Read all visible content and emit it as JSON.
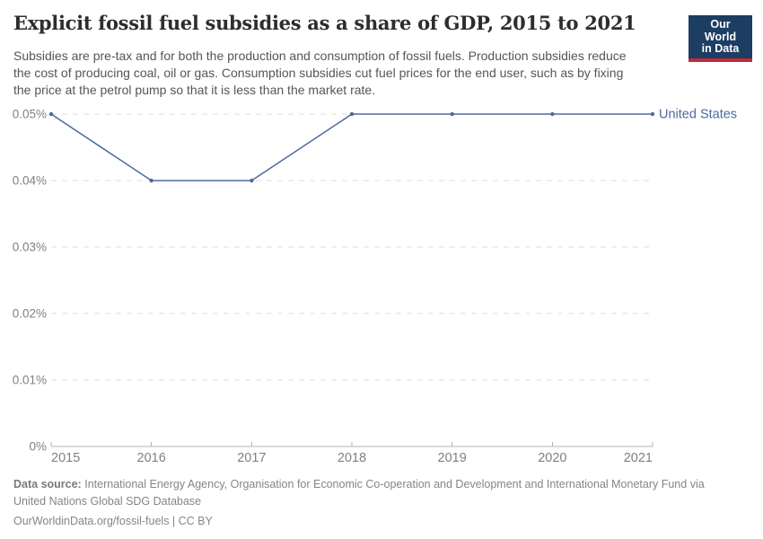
{
  "header": {
    "title": "Explicit fossil fuel subsidies as a share of GDP, 2015 to 2021",
    "subtitle": "Subsidies are pre-tax and for both the production and consumption of fossil fuels. Production subsidies reduce\nthe cost of producing coal, oil or gas. Consumption subsidies cut fuel prices for the end user, such as by fixing\nthe price at the petrol pump so that it is less than the market rate.",
    "logo": {
      "line1": "Our World",
      "line2": "in Data"
    }
  },
  "chart_data": {
    "type": "line",
    "x": [
      2015,
      2016,
      2017,
      2018,
      2019,
      2020,
      2021
    ],
    "x_labels": [
      "2015",
      "2016",
      "2017",
      "2018",
      "2019",
      "2020",
      "2021"
    ],
    "series": [
      {
        "name": "United States",
        "values": [
          0.05,
          0.04,
          0.04,
          0.05,
          0.05,
          0.05,
          0.05
        ],
        "color": "#4c6a9c"
      }
    ],
    "unit": "%",
    "ylim": [
      0,
      0.05
    ],
    "yticks": [
      {
        "value": 0,
        "label": "0%"
      },
      {
        "value": 0.01,
        "label": "0.01%"
      },
      {
        "value": 0.02,
        "label": "0.02%"
      },
      {
        "value": 0.03,
        "label": "0.03%"
      },
      {
        "value": 0.04,
        "label": "0.04%"
      },
      {
        "value": 0.05,
        "label": "0.05%"
      }
    ],
    "grid": "horizontal-dashed",
    "legend_position": "line-end-label"
  },
  "footer": {
    "source_label": "Data source:",
    "source_text": "International Energy Agency, Organisation for Economic Co-operation and Development and International Monetary Fund via\nUnited Nations Global SDG Database",
    "license_line": "OurWorldinData.org/fossil-fuels | CC BY"
  },
  "colors": {
    "accent_line": "#4c6a9c",
    "logo_bg": "#1d3d63",
    "logo_bar": "#bf2b3a",
    "grid_line": "#dcdcdc",
    "axis_line": "#b3b3b3",
    "tick_label": "#808080",
    "title_text": "#2d2d2d",
    "subtitle_text": "#555555",
    "footer_text": "#858585"
  }
}
